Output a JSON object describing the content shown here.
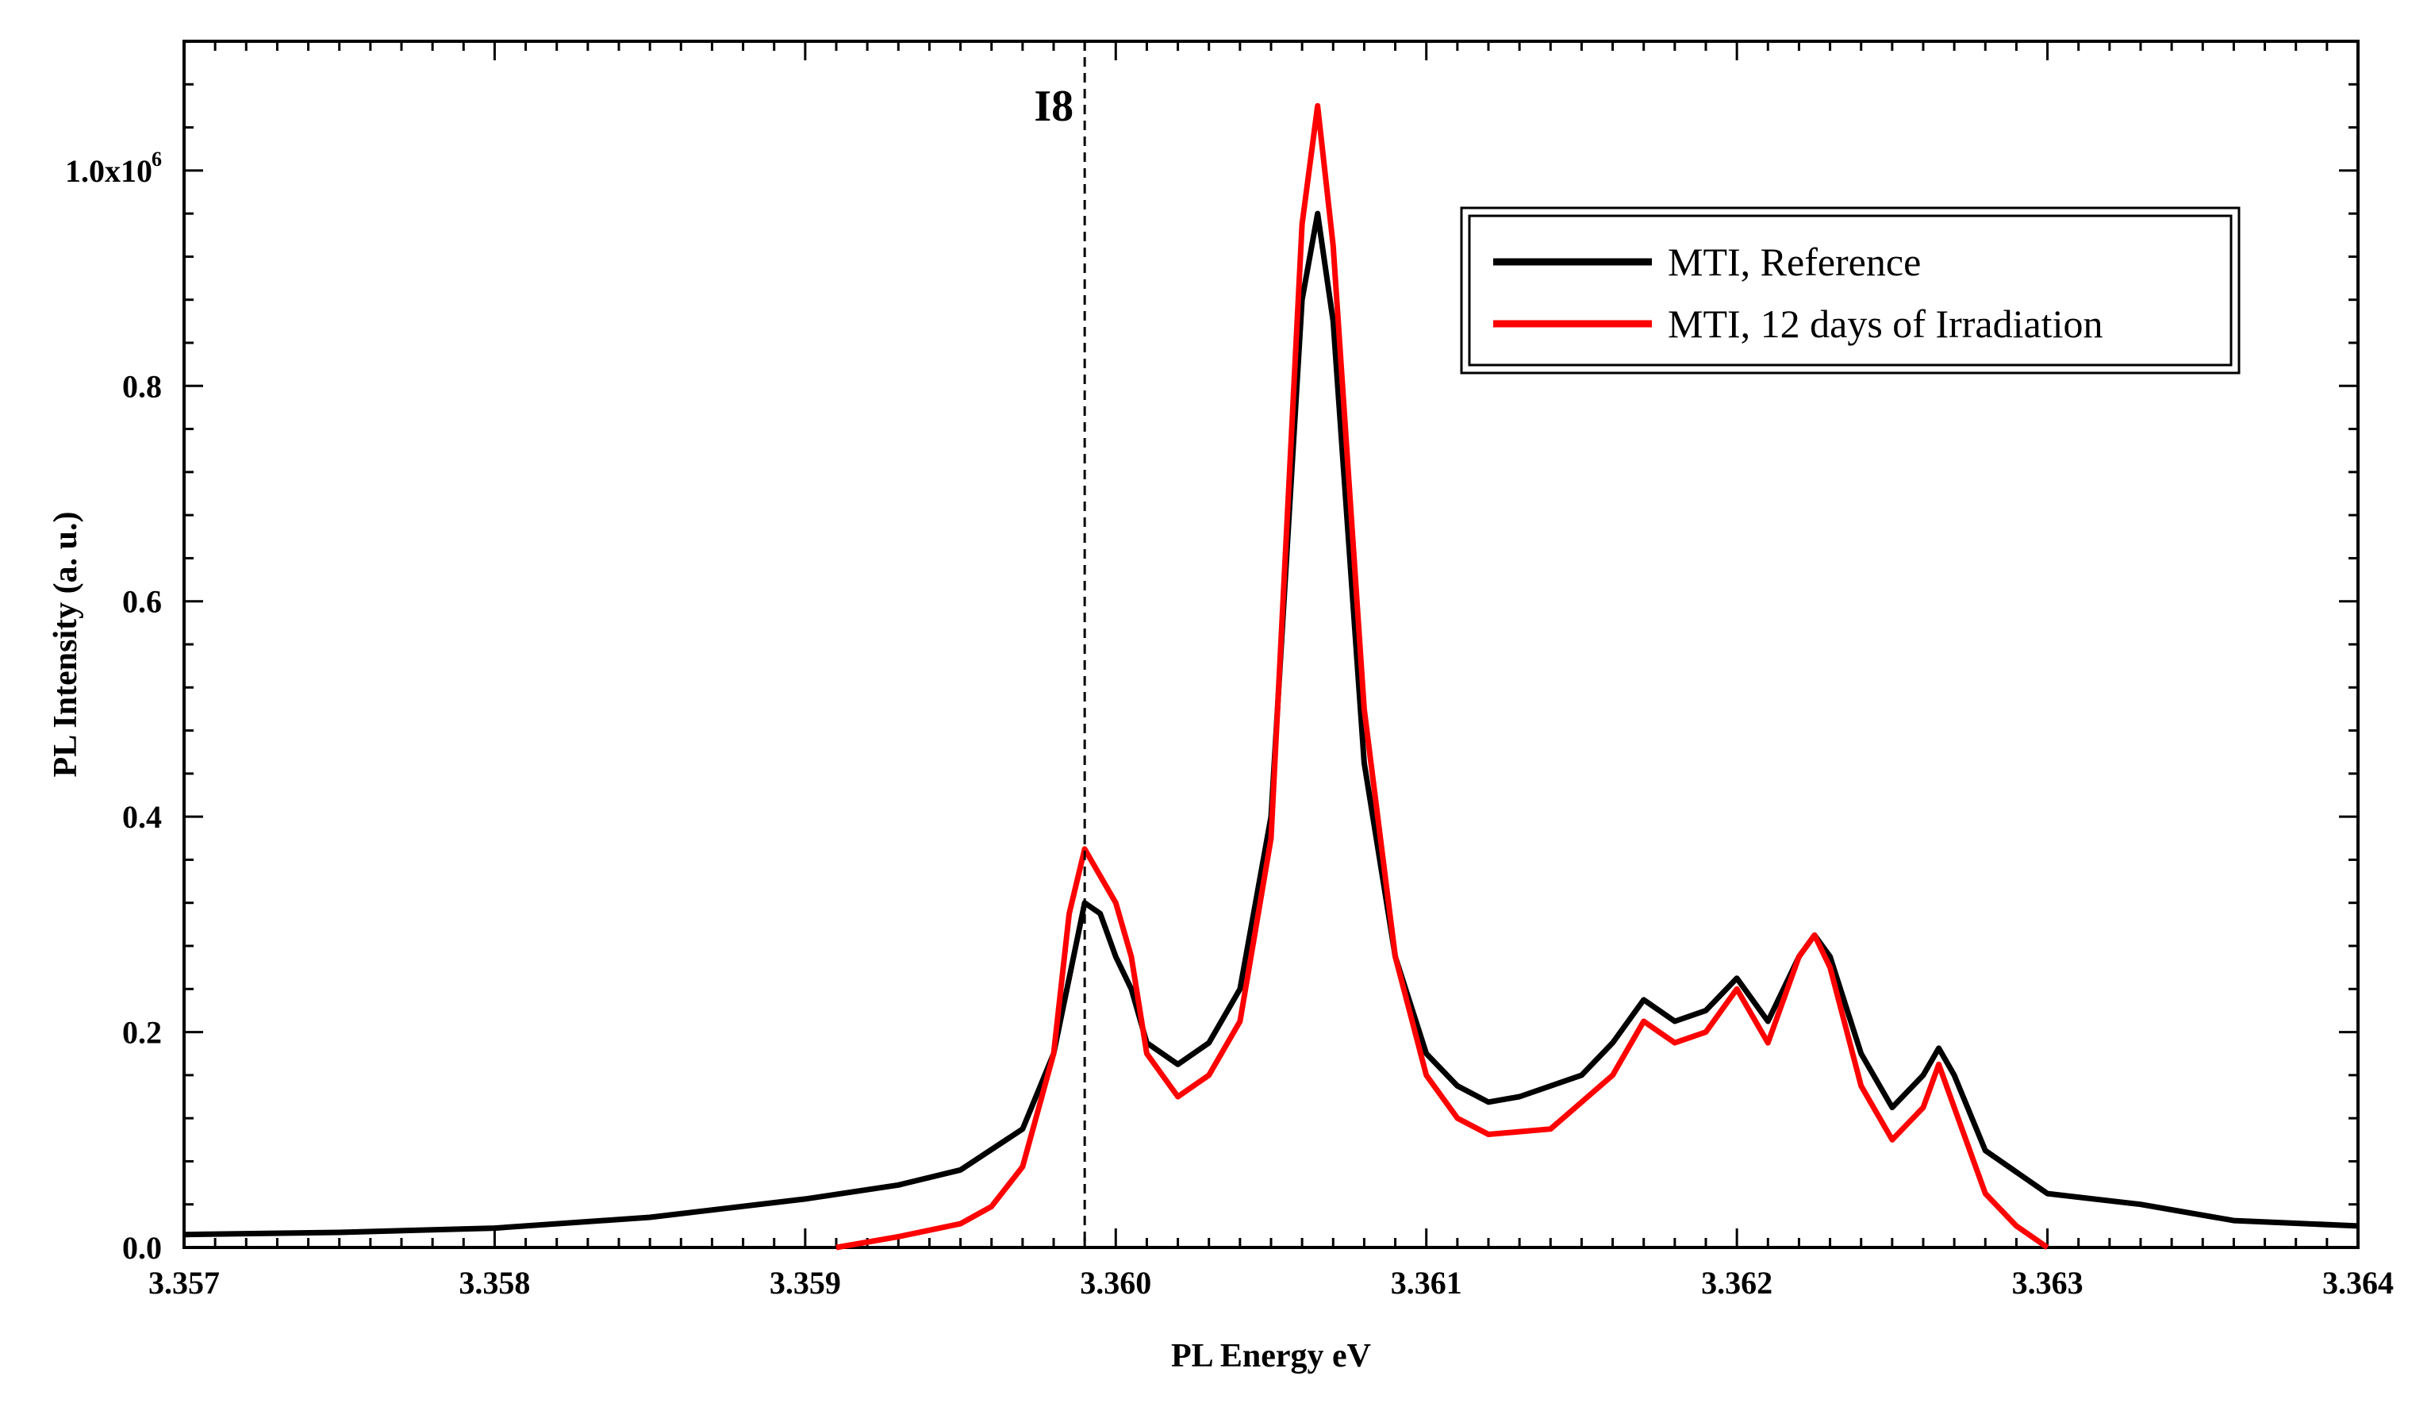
{
  "chart_data": {
    "type": "line",
    "title": "",
    "xlabel": "PL Energy eV",
    "ylabel": "PL Intensity (a. u.)",
    "xlim": [
      3.357,
      3.364
    ],
    "ylim": [
      0,
      1.12
    ],
    "y_multiplier_label": "1.0x10",
    "y_multiplier_exp": "6",
    "x_ticks": [
      3.357,
      3.358,
      3.359,
      3.36,
      3.361,
      3.362,
      3.363,
      3.364
    ],
    "x_tick_labels": [
      "3.357",
      "3.358",
      "3.359",
      "3.360",
      "3.361",
      "3.362",
      "3.363",
      "3.364"
    ],
    "y_ticks": [
      0.0,
      0.2,
      0.4,
      0.6,
      0.8,
      1.0
    ],
    "y_tick_labels": [
      "0.0",
      "0.2",
      "0.4",
      "0.6",
      "0.8",
      ""
    ],
    "grid": false,
    "legend_position": "top-right",
    "annotations": [
      {
        "text": "I8",
        "x": 3.3599,
        "style": "dashed-vertical-line"
      }
    ],
    "series": [
      {
        "name": "MTI, Reference",
        "color": "#000000",
        "points": [
          [
            3.357,
            0.012
          ],
          [
            3.3575,
            0.014
          ],
          [
            3.358,
            0.018
          ],
          [
            3.3585,
            0.028
          ],
          [
            3.359,
            0.045
          ],
          [
            3.3593,
            0.058
          ],
          [
            3.3595,
            0.072
          ],
          [
            3.3597,
            0.11
          ],
          [
            3.3598,
            0.18
          ],
          [
            3.3599,
            0.32
          ],
          [
            3.35995,
            0.31
          ],
          [
            3.36,
            0.27
          ],
          [
            3.36005,
            0.24
          ],
          [
            3.3601,
            0.19
          ],
          [
            3.3602,
            0.17
          ],
          [
            3.3603,
            0.19
          ],
          [
            3.3604,
            0.24
          ],
          [
            3.3605,
            0.4
          ],
          [
            3.3606,
            0.88
          ],
          [
            3.36065,
            0.96
          ],
          [
            3.3607,
            0.86
          ],
          [
            3.3608,
            0.45
          ],
          [
            3.3609,
            0.27
          ],
          [
            3.361,
            0.18
          ],
          [
            3.3611,
            0.15
          ],
          [
            3.3612,
            0.135
          ],
          [
            3.3613,
            0.14
          ],
          [
            3.3615,
            0.16
          ],
          [
            3.3616,
            0.19
          ],
          [
            3.3617,
            0.23
          ],
          [
            3.3618,
            0.21
          ],
          [
            3.3619,
            0.22
          ],
          [
            3.362,
            0.25
          ],
          [
            3.3621,
            0.21
          ],
          [
            3.3622,
            0.27
          ],
          [
            3.36225,
            0.29
          ],
          [
            3.3623,
            0.27
          ],
          [
            3.3624,
            0.18
          ],
          [
            3.3625,
            0.13
          ],
          [
            3.3626,
            0.16
          ],
          [
            3.36265,
            0.185
          ],
          [
            3.3627,
            0.16
          ],
          [
            3.3628,
            0.09
          ],
          [
            3.363,
            0.05
          ],
          [
            3.3633,
            0.04
          ],
          [
            3.3636,
            0.025
          ],
          [
            3.364,
            0.02
          ]
        ]
      },
      {
        "name": "MTI, 12 days of Irradiation",
        "color": "#ff0000",
        "points": [
          [
            3.3591,
            0.0
          ],
          [
            3.3593,
            0.01
          ],
          [
            3.3595,
            0.022
          ],
          [
            3.3596,
            0.038
          ],
          [
            3.3597,
            0.075
          ],
          [
            3.3598,
            0.18
          ],
          [
            3.35985,
            0.31
          ],
          [
            3.3599,
            0.37
          ],
          [
            3.36,
            0.32
          ],
          [
            3.36005,
            0.27
          ],
          [
            3.3601,
            0.18
          ],
          [
            3.3602,
            0.14
          ],
          [
            3.3603,
            0.16
          ],
          [
            3.3604,
            0.21
          ],
          [
            3.3605,
            0.38
          ],
          [
            3.3606,
            0.95
          ],
          [
            3.36065,
            1.06
          ],
          [
            3.3607,
            0.93
          ],
          [
            3.3608,
            0.5
          ],
          [
            3.3609,
            0.27
          ],
          [
            3.361,
            0.16
          ],
          [
            3.3611,
            0.12
          ],
          [
            3.3612,
            0.105
          ],
          [
            3.3614,
            0.11
          ],
          [
            3.3616,
            0.16
          ],
          [
            3.3617,
            0.21
          ],
          [
            3.3618,
            0.19
          ],
          [
            3.3619,
            0.2
          ],
          [
            3.362,
            0.24
          ],
          [
            3.3621,
            0.19
          ],
          [
            3.3622,
            0.27
          ],
          [
            3.36225,
            0.29
          ],
          [
            3.3623,
            0.26
          ],
          [
            3.3624,
            0.15
          ],
          [
            3.3625,
            0.1
          ],
          [
            3.3626,
            0.13
          ],
          [
            3.36265,
            0.17
          ],
          [
            3.3627,
            0.13
          ],
          [
            3.3628,
            0.05
          ],
          [
            3.3629,
            0.02
          ],
          [
            3.363,
            0.0
          ]
        ]
      }
    ]
  }
}
